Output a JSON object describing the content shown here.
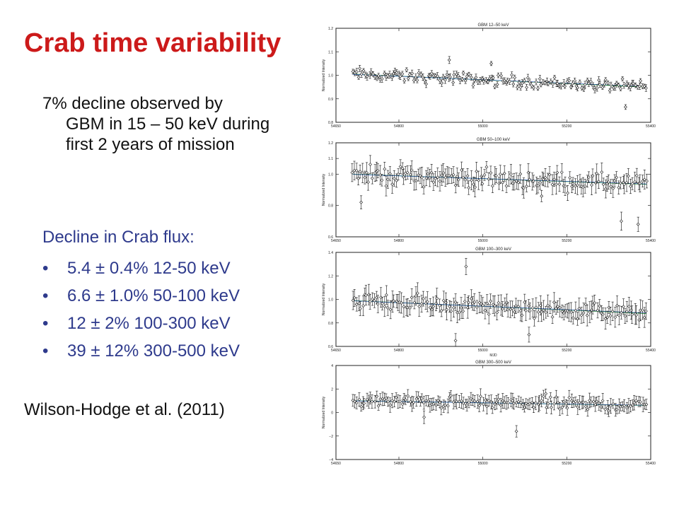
{
  "slide": {
    "title": "Crab time variability",
    "intro_first": "7% decline observed by",
    "intro_rest": "GBM in 15 – 50 keV during first 2 years of mission",
    "decline_head": "Decline in Crab flux:",
    "bullets": [
      "5.4 ± 0.4% 12-50 keV",
      "6.6 ± 1.0% 50-100 keV",
      "12 ± 2% 100-300 keV",
      "39 ± 12% 300-500 keV"
    ],
    "bullet_glyph": "•",
    "citation": "Wilson-Hodge et al. (2011)"
  },
  "colors": {
    "title": "#cc1a1a",
    "bullets": "#2e3a8c",
    "fit_line": "#3aa63a",
    "trend_line": "#3a5fbf",
    "points": "#111111"
  },
  "chart_data": [
    {
      "type": "scatter",
      "title": "GBM 12–50 keV",
      "ylabel": "Normalized Intensity",
      "xlabel": "",
      "xlim": [
        54650,
        55400
      ],
      "ylim": [
        0.8,
        1.2
      ],
      "xticks": [
        54650,
        54800,
        55000,
        55200,
        55400
      ],
      "yticks": [
        0.8,
        0.9,
        1.0,
        1.1,
        1.2
      ],
      "xtick_labels": [
        "54650",
        "54800",
        "55000",
        "55200",
        "55400"
      ],
      "ytick_labels": [
        "0.8",
        "0.9",
        "1.0",
        "1.1",
        "1.2"
      ],
      "x_start": 54690,
      "x_end": 55390,
      "n_points": 160,
      "trend": [
        1.005,
        0.95
      ],
      "noise": 0.022,
      "err": 0.012,
      "outliers": [
        [
          54920,
          1.065
        ],
        [
          55340,
          0.865
        ],
        [
          55020,
          1.05
        ]
      ]
    },
    {
      "type": "scatter",
      "title": "GBM 50–100 keV",
      "ylabel": "Normalized Intensity",
      "xlabel": "",
      "xlim": [
        54650,
        55400
      ],
      "ylim": [
        0.6,
        1.2
      ],
      "xticks": [
        54650,
        54800,
        55000,
        55200,
        55400
      ],
      "yticks": [
        0.6,
        0.8,
        1.0,
        1.1,
        1.2
      ],
      "xtick_labels": [
        "54650",
        "54800",
        "55000",
        "55200",
        "55400"
      ],
      "ytick_labels": [
        "0.6",
        "0.8",
        "1.0",
        "1.1",
        "1.2"
      ],
      "x_start": 54690,
      "x_end": 55390,
      "n_points": 150,
      "trend": [
        1.0,
        0.935
      ],
      "noise": 0.05,
      "err": 0.05,
      "outliers": [
        [
          54710,
          0.82
        ],
        [
          55330,
          0.7
        ],
        [
          55370,
          0.68
        ],
        [
          55140,
          0.86
        ]
      ]
    },
    {
      "type": "scatter",
      "title": "GBM 100–300 keV",
      "ylabel": "Normalized Intensity",
      "xlabel": "MJD",
      "xlim": [
        54650,
        55400
      ],
      "ylim": [
        0.6,
        1.4
      ],
      "xticks": [
        54650,
        54800,
        55000,
        55200,
        55400
      ],
      "yticks": [
        0.6,
        0.8,
        1.0,
        1.2,
        1.4
      ],
      "xtick_labels": [
        "54650",
        "54800",
        "55000",
        "55200",
        "55400"
      ],
      "ytick_labels": [
        "0.6",
        "0.8",
        "1.0",
        "1.2",
        "1.4"
      ],
      "x_start": 54690,
      "x_end": 55390,
      "n_points": 150,
      "trend": [
        0.99,
        0.88
      ],
      "noise": 0.06,
      "err": 0.07,
      "outliers": [
        [
          54960,
          1.28
        ],
        [
          54935,
          0.65
        ],
        [
          55110,
          0.7
        ]
      ]
    },
    {
      "type": "scatter",
      "title": "GBM 300–500 keV",
      "ylabel": "Normalized Intensity",
      "xlabel": "",
      "xlim": [
        54650,
        55400
      ],
      "ylim": [
        -4,
        4
      ],
      "xticks": [
        54650,
        54800,
        55000,
        55200,
        55400
      ],
      "yticks": [
        -4,
        -2,
        0,
        2,
        4
      ],
      "xtick_labels": [
        "54650",
        "54800",
        "55000",
        "55200",
        "55400"
      ],
      "ytick_labels": [
        "−4",
        "−2",
        "0",
        "2",
        "4"
      ],
      "x_start": 54690,
      "x_end": 55390,
      "n_points": 150,
      "trend": [
        1.0,
        0.6
      ],
      "noise": 0.45,
      "err": 0.5,
      "outliers": [
        [
          55080,
          -1.6
        ],
        [
          54860,
          -0.4
        ],
        [
          55150,
          1.6
        ]
      ]
    }
  ]
}
